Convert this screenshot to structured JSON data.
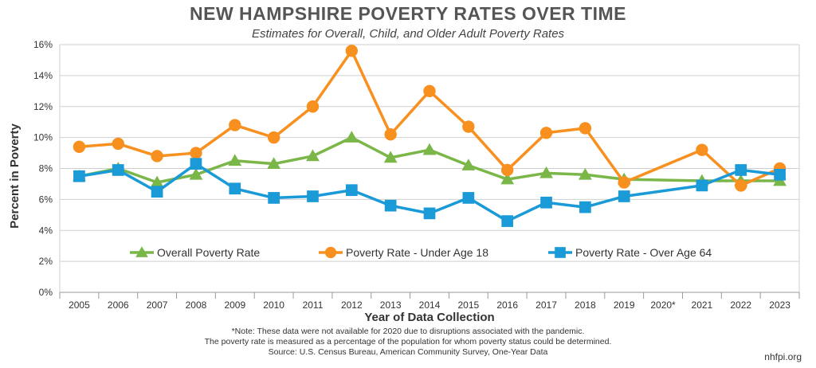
{
  "chart_data": {
    "type": "line",
    "title": "NEW HAMPSHIRE POVERTY RATES OVER TIME",
    "subtitle": "Estimates for Overall, Child, and Older Adult Poverty Rates",
    "xlabel": "Year of Data Collection",
    "ylabel": "Percent in Poverty",
    "ylim": [
      0,
      16
    ],
    "yticks": [
      "0%",
      "2%",
      "4%",
      "6%",
      "8%",
      "10%",
      "12%",
      "14%",
      "16%"
    ],
    "grid": true,
    "legend_position": "bottom-inside",
    "categories": [
      "2005",
      "2006",
      "2007",
      "2008",
      "2009",
      "2010",
      "2011",
      "2012",
      "2013",
      "2014",
      "2015",
      "2016",
      "2017",
      "2018",
      "2019",
      "2020*",
      "2021",
      "2022",
      "2023"
    ],
    "series": [
      {
        "name": "Overall Poverty Rate",
        "color": "#7ab648",
        "marker": "triangle",
        "values": [
          7.5,
          8.0,
          7.1,
          7.6,
          8.5,
          8.3,
          8.8,
          10.0,
          8.7,
          9.2,
          8.2,
          7.3,
          7.7,
          7.6,
          7.3,
          null,
          7.2,
          7.2,
          7.2
        ]
      },
      {
        "name": "Poverty Rate - Under Age 18",
        "color": "#f7901e",
        "marker": "circle",
        "values": [
          9.4,
          9.6,
          8.8,
          9.0,
          10.8,
          10.0,
          12.0,
          15.6,
          10.2,
          13.0,
          10.7,
          7.9,
          10.3,
          10.6,
          7.1,
          null,
          9.2,
          6.9,
          8.0
        ]
      },
      {
        "name": "Poverty Rate - Over Age 64",
        "color": "#1a9ad6",
        "marker": "square",
        "values": [
          7.5,
          7.9,
          6.5,
          8.3,
          6.7,
          6.1,
          6.2,
          6.6,
          5.6,
          5.1,
          6.1,
          4.6,
          5.8,
          5.5,
          6.2,
          null,
          6.9,
          7.9,
          7.6
        ]
      }
    ],
    "notes": [
      "*Note: These data were not available for 2020 due to disruptions associated with the pandemic.",
      "The poverty rate is measured as a percentage of the population for whom poverty status could be determined.",
      "Source: U.S. Census Bureau, American Community Survey, One-Year Data"
    ],
    "credit": "nhfpi.org"
  }
}
